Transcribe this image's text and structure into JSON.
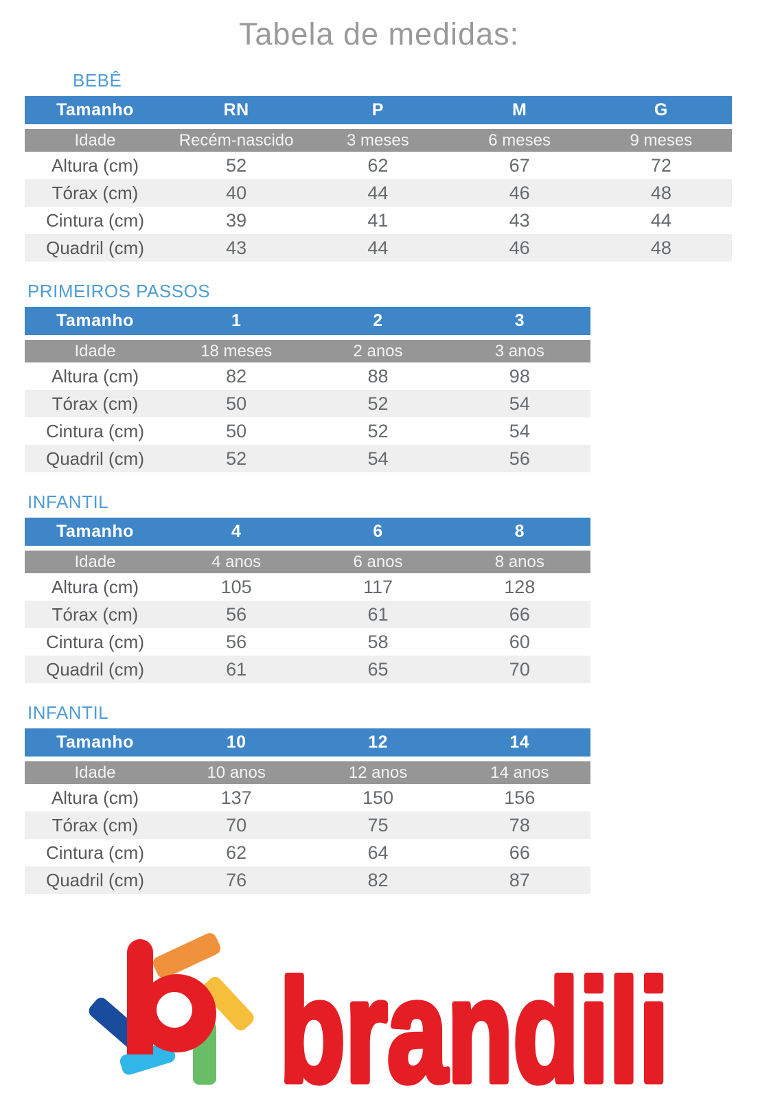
{
  "title": "Tabela de medidas:",
  "tables": [
    {
      "section": "BEBÊ",
      "header": [
        "Tamanho",
        "RN",
        "P",
        "M",
        "G"
      ],
      "rows": [
        [
          "Idade",
          "Recém-nascido",
          "3 meses",
          "6 meses",
          "9 meses"
        ],
        [
          "Altura (cm)",
          "52",
          "62",
          "67",
          "72"
        ],
        [
          "Tórax (cm)",
          "40",
          "44",
          "46",
          "48"
        ],
        [
          "Cintura (cm)",
          "39",
          "41",
          "43",
          "44"
        ],
        [
          "Quadril (cm)",
          "43",
          "44",
          "46",
          "48"
        ]
      ]
    },
    {
      "section": "PRIMEIROS PASSOS",
      "header": [
        "Tamanho",
        "1",
        "2",
        "3"
      ],
      "rows": [
        [
          "Idade",
          "18 meses",
          "2 anos",
          "3 anos"
        ],
        [
          "Altura (cm)",
          "82",
          "88",
          "98"
        ],
        [
          "Tórax (cm)",
          "50",
          "52",
          "54"
        ],
        [
          "Cintura (cm)",
          "50",
          "52",
          "54"
        ],
        [
          "Quadril (cm)",
          "52",
          "54",
          "56"
        ]
      ]
    },
    {
      "section": "INFANTIL",
      "header": [
        "Tamanho",
        "4",
        "6",
        "8"
      ],
      "rows": [
        [
          "Idade",
          "4 anos",
          "6 anos",
          "8 anos"
        ],
        [
          "Altura (cm)",
          "105",
          "117",
          "128"
        ],
        [
          "Tórax (cm)",
          "56",
          "61",
          "66"
        ],
        [
          "Cintura (cm)",
          "56",
          "58",
          "60"
        ],
        [
          "Quadril (cm)",
          "61",
          "65",
          "70"
        ]
      ]
    },
    {
      "section": "INFANTIL",
      "header": [
        "Tamanho",
        "10",
        "12",
        "14"
      ],
      "rows": [
        [
          "Idade",
          "10 anos",
          "12 anos",
          "14 anos"
        ],
        [
          "Altura (cm)",
          "137",
          "150",
          "156"
        ],
        [
          "Tórax (cm)",
          "70",
          "75",
          "78"
        ],
        [
          "Cintura (cm)",
          "62",
          "64",
          "66"
        ],
        [
          "Quadril (cm)",
          "76",
          "82",
          "87"
        ]
      ]
    }
  ],
  "logo": {
    "wordmark": "brandili"
  },
  "colors": {
    "header_blue": "#3e86c8",
    "section_label_blue": "#4f9cd5",
    "idade_row_gray": "#969696",
    "stripe_gray": "#efefef",
    "title_gray": "#9a9a9a",
    "data_text_gray": "#666a6d",
    "brand_red": "#e51e26",
    "logo_orange": "#f0913c",
    "logo_yellow": "#f6bf3b",
    "logo_green": "#6abd67",
    "logo_cyan": "#30b6e8",
    "logo_dark_blue": "#1a4c9d"
  }
}
